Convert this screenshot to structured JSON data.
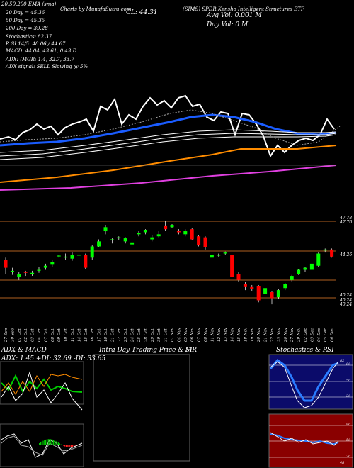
{
  "header": {
    "line1_left": "20,50,200 EMA (sma)",
    "line1_mid": "Charts by MunafaSutra.com",
    "line1_title": "(SIMS) SPDR Kensho Intelligent Structures ETF",
    "ema20": "20 Day = 45.36",
    "ema50": "50 Day = 45.35",
    "ema200": "200 Day = 39.28",
    "stoch": "Stochastics: 82.37",
    "rsi": "R                SI 14/5: 48.06 / 44.67",
    "macd": "MACD: 44.04, 43.61, 0.43 D",
    "adx_line": "ADX:                (MGR: 1.4, 32.7, 33.7",
    "adx_signal": "ADX  signal: SELL  Slowing @ 5%",
    "cl": "CL: 44.31",
    "avg_vol": "Avg Vol: 0.001 M",
    "day_vol": "Day Vol: 0   M"
  },
  "price_labels": {
    "top_a": "47.78",
    "top_b": "47.76",
    "mid": "44.26",
    "low_a": "40.24",
    "low_b": "40.24",
    "low_c": "40.24"
  },
  "dates": [
    "27 Sep",
    "30 Sep",
    "01 Oct",
    "02 Oct",
    "03 Oct",
    "04 Oct",
    "07 Oct",
    "08 Oct",
    "09 Oct",
    "10 Oct",
    "11 Oct",
    "14 Oct",
    "15 Oct",
    "16 Oct",
    "17 Oct",
    "18 Oct",
    "21 Oct",
    "22 Oct",
    "23 Oct",
    "24 Oct",
    "25 Oct",
    "28 Oct",
    "29 Oct",
    "30 Oct",
    "31 Oct",
    "01 Nov",
    "04 Nov",
    "05 Nov",
    "06 Nov",
    "07 Nov",
    "08 Nov",
    "11 Nov",
    "12 Nov",
    "13 Nov",
    "14 Nov",
    "15 Nov",
    "18 Nov",
    "19 Nov",
    "20 Nov",
    "21 Nov",
    "22 Nov",
    "25 Nov",
    "26 Nov",
    "27 Nov",
    "29 Nov",
    "02 Dec",
    "03 Dec",
    "04 Dec",
    "05 Dec",
    "06 Dec"
  ],
  "panels": {
    "adx_title": "ADX  & MACD",
    "adx_values": "ADX: 1.45  +DI: 32.69  -DI: 33.65",
    "intra_title": "Intra  Day Trading Price  & MR",
    "intra_si": "SI",
    "stoch_title": "Stochastics & R",
    "stoch_si": "SI",
    "stoch_ticks": [
      "80",
      "50",
      "20"
    ],
    "rsi_ticks": [
      "80",
      "50",
      "20"
    ],
    "stoch_val": "82",
    "rsi_val": "48"
  },
  "chart_data": {
    "type": "candlestick",
    "title": "(SIMS) SPDR Kensho Intelligent Structures ETF",
    "colors": {
      "up": "#00ff00",
      "down": "#ff0000",
      "ema20": "#1a5cff",
      "ema50": "#ffffff",
      "ema200": "#ff8c00",
      "extra": "#e040e0"
    },
    "candles": [
      {
        "d": "27 Sep",
        "o": 44.0,
        "c": 43.2,
        "h": 44.2,
        "l": 42.6
      },
      {
        "d": "30 Sep",
        "o": 42.8,
        "c": 42.9,
        "h": 43.2,
        "l": 42.5
      },
      {
        "d": "01 Oct",
        "o": 42.3,
        "c": 42.6,
        "h": 42.8,
        "l": 42.0
      },
      {
        "d": "02 Oct",
        "o": 42.8,
        "c": 42.7,
        "h": 42.9,
        "l": 42.4
      },
      {
        "d": "03 Oct",
        "o": 42.6,
        "c": 42.7,
        "h": 42.9,
        "l": 42.4
      },
      {
        "d": "04 Oct",
        "o": 42.9,
        "c": 43.0,
        "h": 43.3,
        "l": 42.7
      },
      {
        "d": "07 Oct",
        "o": 43.2,
        "c": 43.4,
        "h": 43.6,
        "l": 43.0
      },
      {
        "d": "08 Oct",
        "o": 43.5,
        "c": 43.8,
        "h": 44.0,
        "l": 43.3
      },
      {
        "d": "09 Oct",
        "o": 44.4,
        "c": 44.4,
        "h": 44.5,
        "l": 44.2
      },
      {
        "d": "10 Oct",
        "o": 44.2,
        "c": 44.3,
        "h": 44.6,
        "l": 44.0
      },
      {
        "d": "11 Oct",
        "o": 44.1,
        "c": 44.5,
        "h": 44.7,
        "l": 43.9
      },
      {
        "d": "14 Oct",
        "o": 44.4,
        "c": 44.5,
        "h": 44.8,
        "l": 44.2
      },
      {
        "d": "15 Oct",
        "o": 44.5,
        "c": 43.2,
        "h": 44.6,
        "l": 43.1
      },
      {
        "d": "16 Oct",
        "o": 44.2,
        "c": 45.3,
        "h": 45.4,
        "l": 44.0
      },
      {
        "d": "17 Oct",
        "o": 45.3,
        "c": 45.8,
        "h": 46.0,
        "l": 45.2
      },
      {
        "d": "18 Oct",
        "o": 46.8,
        "c": 47.2,
        "h": 47.4,
        "l": 46.5
      },
      {
        "d": "21 Oct",
        "o": 45.9,
        "c": 46.0,
        "h": 46.1,
        "l": 45.6
      },
      {
        "d": "22 Oct",
        "o": 46.1,
        "c": 46.2,
        "h": 46.3,
        "l": 45.9
      },
      {
        "d": "23 Oct",
        "o": 45.8,
        "c": 46.1,
        "h": 46.2,
        "l": 45.6
      },
      {
        "d": "24 Oct",
        "o": 45.5,
        "c": 45.7,
        "h": 45.9,
        "l": 45.3
      },
      {
        "d": "25 Oct",
        "o": 46.5,
        "c": 46.6,
        "h": 46.8,
        "l": 46.3
      },
      {
        "d": "28 Oct",
        "o": 46.7,
        "c": 46.9,
        "h": 47.0,
        "l": 46.5
      },
      {
        "d": "29 Oct",
        "o": 46.0,
        "c": 46.2,
        "h": 46.4,
        "l": 45.8
      },
      {
        "d": "30 Oct",
        "o": 46.3,
        "c": 46.5,
        "h": 46.8,
        "l": 46.2
      },
      {
        "d": "31 Oct",
        "o": 47.3,
        "c": 47.0,
        "h": 47.8,
        "l": 46.8
      },
      {
        "d": "01 Nov",
        "o": 47.2,
        "c": 47.4,
        "h": 47.5,
        "l": 47.1
      },
      {
        "d": "04 Nov",
        "o": 46.8,
        "c": 46.7,
        "h": 47.0,
        "l": 46.5
      },
      {
        "d": "05 Nov",
        "o": 46.5,
        "c": 46.8,
        "h": 47.0,
        "l": 46.3
      },
      {
        "d": "06 Nov",
        "o": 47.0,
        "c": 46.0,
        "h": 47.1,
        "l": 45.9
      },
      {
        "d": "07 Nov",
        "o": 46.3,
        "c": 45.4,
        "h": 46.4,
        "l": 45.3
      },
      {
        "d": "08 Nov",
        "o": 46.2,
        "c": 45.2,
        "h": 46.3,
        "l": 45.0
      },
      {
        "d": "11 Nov",
        "o": 44.2,
        "c": 44.5,
        "h": 44.6,
        "l": 44.0
      },
      {
        "d": "12 Nov",
        "o": 44.4,
        "c": 44.5,
        "h": 44.6,
        "l": 44.3
      },
      {
        "d": "13 Nov",
        "o": 44.6,
        "c": 44.7,
        "h": 44.8,
        "l": 44.5
      },
      {
        "d": "14 Nov",
        "o": 44.5,
        "c": 42.3,
        "h": 44.6,
        "l": 42.2
      },
      {
        "d": "15 Nov",
        "o": 42.6,
        "c": 42.0,
        "h": 42.8,
        "l": 41.8
      },
      {
        "d": "18 Nov",
        "o": 41.6,
        "c": 41.3,
        "h": 41.8,
        "l": 41.0
      },
      {
        "d": "19 Nov",
        "o": 41.3,
        "c": 41.1,
        "h": 41.5,
        "l": 40.9
      },
      {
        "d": "20 Nov",
        "o": 41.4,
        "c": 40.0,
        "h": 41.5,
        "l": 39.8
      },
      {
        "d": "21 Nov",
        "o": 40.6,
        "c": 41.2,
        "h": 41.3,
        "l": 40.4
      },
      {
        "d": "22 Nov",
        "o": 40.8,
        "c": 40.2,
        "h": 40.9,
        "l": 39.6
      },
      {
        "d": "25 Nov",
        "o": 40.3,
        "c": 41.0,
        "h": 41.1,
        "l": 40.1
      },
      {
        "d": "26 Nov",
        "o": 41.2,
        "c": 41.6,
        "h": 41.7,
        "l": 41.0
      },
      {
        "d": "27 Nov",
        "o": 42.0,
        "c": 42.4,
        "h": 42.5,
        "l": 41.8
      },
      {
        "d": "29 Nov",
        "o": 42.6,
        "c": 43.0,
        "h": 43.1,
        "l": 42.5
      },
      {
        "d": "02 Dec",
        "o": 43.0,
        "c": 43.2,
        "h": 43.3,
        "l": 42.8
      },
      {
        "d": "03 Dec",
        "o": 43.0,
        "c": 43.6,
        "h": 43.8,
        "l": 42.9
      },
      {
        "d": "04 Dec",
        "o": 43.4,
        "c": 44.6,
        "h": 44.7,
        "l": 43.3
      },
      {
        "d": "05 Dec",
        "o": 44.9,
        "c": 45.0,
        "h": 45.1,
        "l": 44.7
      },
      {
        "d": "06 Dec",
        "o": 45.0,
        "c": 44.3,
        "h": 45.1,
        "l": 44.2
      }
    ]
  }
}
